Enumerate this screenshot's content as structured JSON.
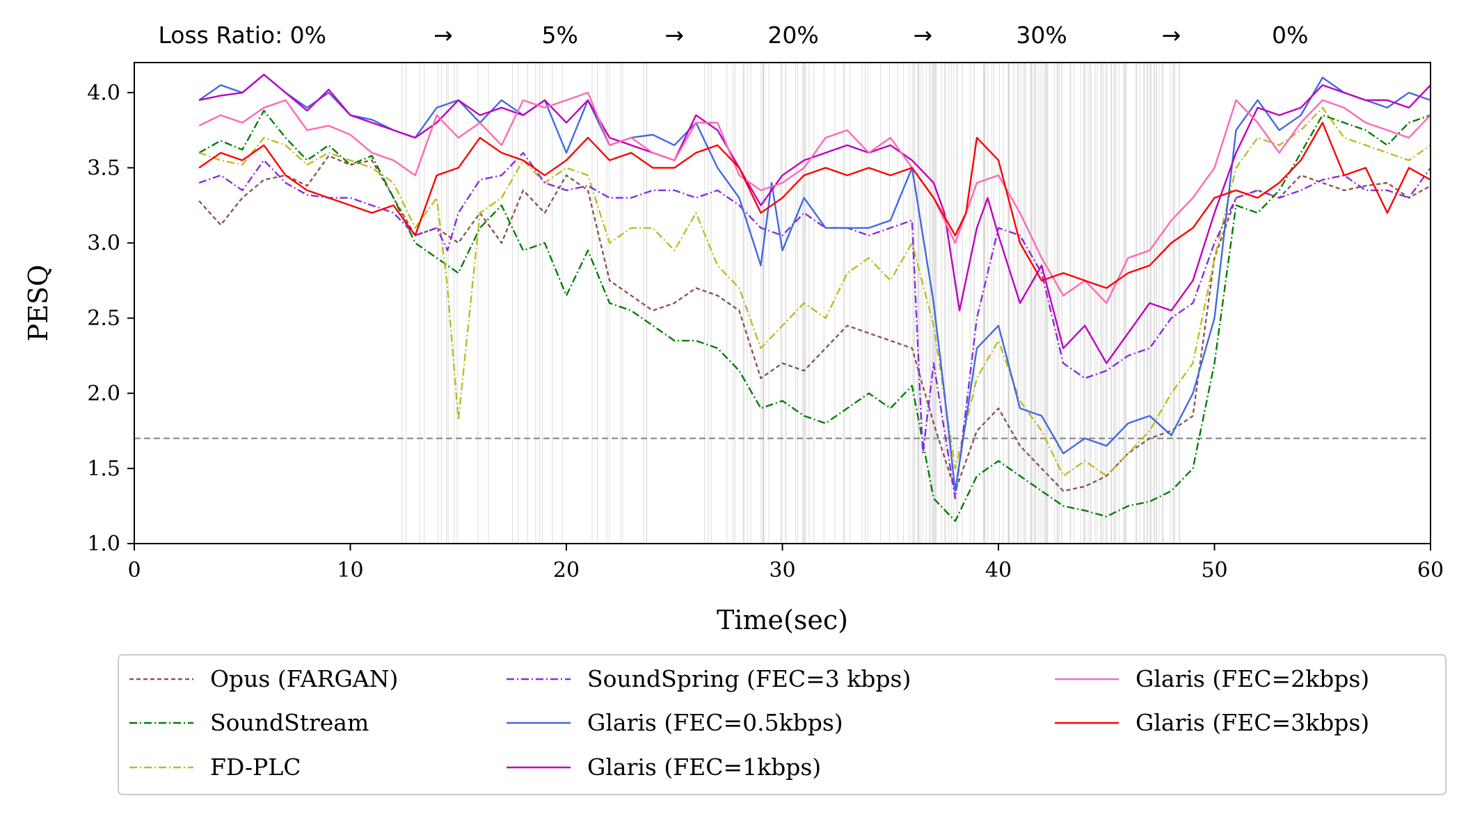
{
  "chart_data": {
    "type": "line",
    "xlabel": "Time(sec)",
    "ylabel": "PESQ",
    "xlim": [
      0,
      60
    ],
    "ylim": [
      1.0,
      4.2
    ],
    "xticks": [
      0,
      10,
      20,
      30,
      40,
      50,
      60
    ],
    "xtick_labels": [
      "0",
      "10",
      "20",
      "30",
      "40",
      "50",
      "60"
    ],
    "yticks": [
      1.0,
      1.5,
      2.0,
      2.5,
      3.0,
      3.5,
      4.0
    ],
    "ytick_labels": [
      "1.0",
      "1.5",
      "2.0",
      "2.5",
      "3.0",
      "3.5",
      "4.0"
    ],
    "threshold": 1.7,
    "threshold_color": "#808080",
    "loss_ratio_header": [
      {
        "text": "Loss Ratio: 0%",
        "x": 5
      },
      {
        "text": "→",
        "x": 14.3
      },
      {
        "text": "5%",
        "x": 19.7
      },
      {
        "text": "→",
        "x": 25
      },
      {
        "text": "20%",
        "x": 30.5
      },
      {
        "text": "→",
        "x": 36.5
      },
      {
        "text": "30%",
        "x": 42
      },
      {
        "text": "→",
        "x": 48
      },
      {
        "text": "0%",
        "x": 53.5
      }
    ],
    "loss_regions": [
      [
        12,
        17
      ],
      [
        17,
        27
      ],
      [
        27,
        36
      ],
      [
        36,
        48.5
      ]
    ],
    "loss_densities": [
      12,
      20,
      40,
      120
    ],
    "series": [
      {
        "name": "Opus (FARGAN)",
        "color": "#8c564b",
        "style": "dashed",
        "x": [
          3,
          4,
          5,
          6,
          7,
          8,
          9,
          10,
          11,
          12,
          13,
          14,
          15,
          16,
          17,
          18,
          19,
          20,
          21,
          22,
          23,
          24,
          25,
          26,
          27,
          28,
          29,
          30,
          31,
          32,
          33,
          34,
          35,
          36,
          37,
          38,
          39,
          40,
          41,
          42,
          43,
          44,
          45,
          46,
          47,
          48,
          49,
          50,
          51,
          52,
          53,
          54,
          55,
          56,
          57,
          58,
          59,
          60
        ],
        "values": [
          3.28,
          3.12,
          3.3,
          3.42,
          3.45,
          3.38,
          3.58,
          3.52,
          3.55,
          3.3,
          3.05,
          3.1,
          3.0,
          3.2,
          3.0,
          3.35,
          3.2,
          3.45,
          3.35,
          2.75,
          2.65,
          2.55,
          2.6,
          2.7,
          2.65,
          2.55,
          2.1,
          2.2,
          2.15,
          2.3,
          2.45,
          2.4,
          2.35,
          2.3,
          1.8,
          1.35,
          1.75,
          1.9,
          1.65,
          1.5,
          1.35,
          1.38,
          1.45,
          1.6,
          1.7,
          1.75,
          1.85,
          2.9,
          3.3,
          3.35,
          3.3,
          3.45,
          3.4,
          3.35,
          3.38,
          3.4,
          3.3,
          3.38
        ]
      },
      {
        "name": "SoundStream",
        "color": "#007f00",
        "style": "dashdot",
        "x": [
          3,
          4,
          5,
          6,
          7,
          8,
          9,
          10,
          11,
          12,
          13,
          14,
          15,
          16,
          17,
          18,
          19,
          20,
          21,
          22,
          23,
          24,
          25,
          26,
          27,
          28,
          29,
          30,
          31,
          32,
          33,
          34,
          35,
          36,
          37,
          38,
          39,
          40,
          41,
          42,
          43,
          44,
          45,
          46,
          47,
          48,
          49,
          50,
          51,
          52,
          53,
          54,
          55,
          56,
          57,
          58,
          59,
          60
        ],
        "values": [
          3.6,
          3.68,
          3.62,
          3.88,
          3.7,
          3.55,
          3.65,
          3.52,
          3.58,
          3.3,
          3.0,
          2.9,
          2.8,
          3.1,
          3.25,
          2.95,
          3.0,
          2.65,
          2.95,
          2.6,
          2.55,
          2.45,
          2.35,
          2.35,
          2.3,
          2.15,
          1.9,
          1.95,
          1.85,
          1.8,
          1.9,
          2.0,
          1.9,
          2.05,
          1.3,
          1.15,
          1.45,
          1.55,
          1.45,
          1.35,
          1.25,
          1.22,
          1.18,
          1.25,
          1.28,
          1.35,
          1.5,
          2.2,
          3.25,
          3.2,
          3.35,
          3.6,
          3.85,
          3.8,
          3.75,
          3.65,
          3.8,
          3.85
        ]
      },
      {
        "name": "FD-PLC",
        "color": "#bcbd22",
        "style": "dashdot",
        "x": [
          3,
          4,
          5,
          6,
          7,
          8,
          9,
          10,
          11,
          12,
          13,
          14,
          14.5,
          15,
          16,
          17,
          18,
          19,
          20,
          21,
          22,
          23,
          24,
          25,
          26,
          27,
          28,
          29,
          30,
          31,
          32,
          33,
          34,
          35,
          36,
          37,
          38,
          39,
          40,
          41,
          42,
          43,
          44,
          45,
          46,
          47,
          48,
          49,
          50,
          51,
          52,
          53,
          54,
          55,
          56,
          57,
          58,
          59,
          60
        ],
        "values": [
          3.6,
          3.55,
          3.52,
          3.7,
          3.65,
          3.52,
          3.6,
          3.55,
          3.5,
          3.4,
          3.1,
          3.3,
          2.7,
          1.82,
          3.2,
          3.3,
          3.55,
          3.4,
          3.5,
          3.45,
          3.0,
          3.1,
          3.1,
          2.95,
          3.2,
          2.85,
          2.7,
          2.3,
          2.45,
          2.6,
          2.5,
          2.8,
          2.9,
          2.75,
          3.0,
          2.45,
          1.5,
          2.1,
          2.35,
          1.95,
          1.75,
          1.45,
          1.55,
          1.45,
          1.6,
          1.75,
          2.0,
          2.2,
          2.9,
          3.5,
          3.7,
          3.65,
          3.75,
          3.9,
          3.7,
          3.65,
          3.6,
          3.55,
          3.65
        ]
      },
      {
        "name": "SoundSpring (FEC=3 kbps)",
        "color": "#8a2be2",
        "style": "dashdot",
        "x": [
          3,
          4,
          5,
          6,
          7,
          8,
          9,
          10,
          11,
          12,
          13,
          14,
          14.5,
          15,
          16,
          17,
          18,
          19,
          20,
          21,
          22,
          23,
          24,
          25,
          26,
          27,
          28,
          29,
          30,
          31,
          32,
          33,
          34,
          35,
          36,
          36.5,
          37,
          38,
          39,
          40,
          41,
          42,
          43,
          44,
          45,
          46,
          47,
          48,
          49,
          50,
          51,
          52,
          53,
          54,
          55,
          56,
          57,
          58,
          59,
          60
        ],
        "values": [
          3.4,
          3.45,
          3.35,
          3.55,
          3.4,
          3.32,
          3.3,
          3.3,
          3.25,
          3.2,
          3.05,
          3.1,
          2.95,
          3.2,
          3.42,
          3.45,
          3.6,
          3.4,
          3.35,
          3.38,
          3.3,
          3.3,
          3.35,
          3.35,
          3.3,
          3.35,
          3.25,
          3.1,
          3.05,
          3.2,
          3.1,
          3.1,
          3.05,
          3.1,
          3.15,
          1.6,
          2.2,
          1.3,
          2.5,
          3.1,
          3.05,
          2.8,
          2.2,
          2.1,
          2.15,
          2.25,
          2.3,
          2.5,
          2.6,
          3.0,
          3.3,
          3.35,
          3.3,
          3.35,
          3.42,
          3.45,
          3.35,
          3.35,
          3.3,
          3.5
        ]
      },
      {
        "name": "Glaris (FEC=0.5kbps)",
        "color": "#4169e1",
        "style": "solid",
        "x": [
          3,
          4,
          5,
          6,
          7,
          8,
          9,
          10,
          11,
          12,
          13,
          14,
          15,
          16,
          17,
          18,
          19,
          20,
          21,
          22,
          23,
          24,
          25,
          26,
          27,
          28,
          29,
          29.5,
          30,
          31,
          32,
          33,
          34,
          35,
          36,
          37,
          37.5,
          38,
          39,
          40,
          41,
          42,
          43,
          44,
          45,
          46,
          47,
          48,
          49,
          50,
          51,
          52,
          53,
          54,
          55,
          56,
          57,
          58,
          59,
          60
        ],
        "values": [
          3.95,
          4.05,
          4.0,
          4.12,
          4.0,
          3.9,
          4.0,
          3.85,
          3.82,
          3.75,
          3.7,
          3.9,
          3.95,
          3.8,
          3.95,
          3.85,
          3.95,
          3.6,
          3.95,
          3.65,
          3.7,
          3.72,
          3.65,
          3.8,
          3.5,
          3.3,
          2.85,
          3.4,
          2.95,
          3.3,
          3.1,
          3.1,
          3.1,
          3.15,
          3.5,
          2.6,
          2.0,
          1.35,
          2.3,
          2.45,
          1.9,
          1.85,
          1.6,
          1.7,
          1.65,
          1.8,
          1.85,
          1.72,
          2.0,
          2.5,
          3.75,
          3.95,
          3.75,
          3.85,
          4.1,
          4.0,
          3.95,
          3.9,
          4.0,
          3.95
        ]
      },
      {
        "name": "Glaris (FEC=1kbps)",
        "color": "#bf00bf",
        "style": "solid",
        "x": [
          3,
          4,
          5,
          6,
          7,
          8,
          9,
          10,
          11,
          12,
          13,
          14,
          15,
          16,
          17,
          18,
          19,
          20,
          21,
          22,
          23,
          24,
          25,
          26,
          27,
          28,
          29,
          30,
          31,
          32,
          33,
          34,
          35,
          36,
          37,
          37.5,
          38.2,
          39,
          39.5,
          40,
          41,
          42,
          43,
          44,
          45,
          46,
          47,
          48,
          49,
          50,
          51,
          52,
          53,
          54,
          55,
          56,
          57,
          58,
          59,
          60
        ],
        "values": [
          3.95,
          3.98,
          4.0,
          4.12,
          4.0,
          3.88,
          4.02,
          3.85,
          3.8,
          3.75,
          3.7,
          3.8,
          3.95,
          3.85,
          3.9,
          3.85,
          3.95,
          3.8,
          3.95,
          3.7,
          3.65,
          3.6,
          3.55,
          3.85,
          3.75,
          3.5,
          3.25,
          3.45,
          3.55,
          3.6,
          3.65,
          3.6,
          3.65,
          3.55,
          3.4,
          3.2,
          2.55,
          3.1,
          3.3,
          3.05,
          2.6,
          2.85,
          2.3,
          2.45,
          2.2,
          2.4,
          2.6,
          2.55,
          2.75,
          3.2,
          3.6,
          3.9,
          3.85,
          3.9,
          4.05,
          4.0,
          3.95,
          3.95,
          3.9,
          4.05
        ]
      },
      {
        "name": "Glaris (FEC=2kbps)",
        "color": "#ff69b4",
        "style": "solid",
        "x": [
          3,
          4,
          5,
          6,
          7,
          8,
          9,
          10,
          11,
          12,
          13,
          14,
          15,
          16,
          17,
          18,
          19,
          20,
          21,
          22,
          23,
          24,
          25,
          26,
          27,
          28,
          29,
          30,
          31,
          32,
          33,
          34,
          35,
          36,
          37,
          38,
          39,
          40,
          41,
          42,
          43,
          44,
          45,
          46,
          47,
          48,
          49,
          50,
          51,
          52,
          53,
          54,
          55,
          56,
          57,
          58,
          59,
          60
        ],
        "values": [
          3.78,
          3.85,
          3.8,
          3.9,
          3.95,
          3.75,
          3.78,
          3.72,
          3.6,
          3.55,
          3.45,
          3.85,
          3.7,
          3.8,
          3.65,
          3.95,
          3.9,
          3.95,
          4.0,
          3.65,
          3.7,
          3.6,
          3.55,
          3.8,
          3.8,
          3.45,
          3.35,
          3.4,
          3.5,
          3.7,
          3.75,
          3.6,
          3.7,
          3.5,
          3.3,
          3.0,
          3.4,
          3.45,
          3.2,
          2.9,
          2.65,
          2.75,
          2.6,
          2.9,
          2.95,
          3.15,
          3.3,
          3.5,
          3.95,
          3.8,
          3.6,
          3.8,
          3.95,
          3.9,
          3.8,
          3.75,
          3.7,
          3.85
        ]
      },
      {
        "name": "Glaris (FEC=3kbps)",
        "color": "#ff0000",
        "style": "solid",
        "x": [
          3,
          4,
          5,
          6,
          7,
          8,
          9,
          10,
          11,
          12,
          13,
          14,
          15,
          16,
          17,
          18,
          19,
          20,
          21,
          22,
          23,
          24,
          25,
          26,
          27,
          28,
          29,
          30,
          31,
          32,
          33,
          34,
          35,
          36,
          37,
          38,
          38.5,
          39,
          40,
          41,
          42,
          43,
          44,
          45,
          46,
          47,
          48,
          49,
          50,
          51,
          52,
          53,
          54,
          55,
          56,
          57,
          58,
          59,
          60
        ],
        "values": [
          3.5,
          3.6,
          3.55,
          3.65,
          3.45,
          3.35,
          3.3,
          3.25,
          3.2,
          3.25,
          3.05,
          3.45,
          3.5,
          3.7,
          3.6,
          3.55,
          3.45,
          3.55,
          3.7,
          3.55,
          3.6,
          3.5,
          3.5,
          3.6,
          3.65,
          3.5,
          3.2,
          3.3,
          3.45,
          3.5,
          3.45,
          3.5,
          3.45,
          3.5,
          3.3,
          3.05,
          3.2,
          3.7,
          3.55,
          3.0,
          2.75,
          2.8,
          2.75,
          2.7,
          2.8,
          2.85,
          3.0,
          3.1,
          3.3,
          3.35,
          3.3,
          3.4,
          3.55,
          3.8,
          3.45,
          3.5,
          3.2,
          3.5,
          3.42
        ]
      }
    ],
    "legend": {
      "placement": "below",
      "columns": 3,
      "entries": [
        "Opus (FARGAN)",
        "SoundStream",
        "FD-PLC",
        "SoundSpring (FEC=3 kbps)",
        "Glaris (FEC=0.5kbps)",
        "Glaris (FEC=1kbps)",
        "Glaris (FEC=2kbps)",
        "Glaris (FEC=3kbps)"
      ]
    }
  }
}
